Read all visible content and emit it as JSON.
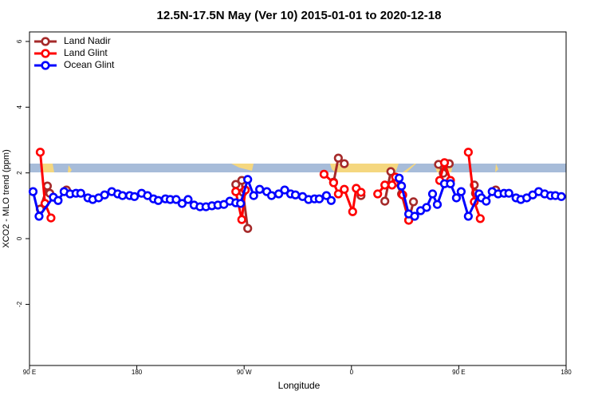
{
  "chart_data": {
    "type": "line",
    "title": "12.5N-17.5N May (Ver 10)   2015-01-01 to 2020-12-18",
    "x_label": "Longitude",
    "y_label": "XCO2 - MLO trend (ppm)",
    "xlim": [
      90,
      540
    ],
    "ylim": [
      -3.86,
      6.29
    ],
    "xticks": [
      {
        "value": 90,
        "label": "90 E"
      },
      180,
      {
        "value": 270,
        "label": "90 W"
      },
      {
        "value": 360,
        "label": "0"
      },
      {
        "value": 450,
        "label": "90 E"
      },
      {
        "value": 540,
        "label": "180"
      }
    ],
    "yticks": [
      -2,
      0,
      2,
      4,
      6
    ],
    "legend": "top-left",
    "series": [
      {
        "name": "Land Nadir",
        "color": "#a52a2a",
        "x": [
          99,
          105,
          107,
          null,
          121,
          null,
          263,
          268,
          269,
          273,
          null,
          345,
          349,
          354,
          null,
          368,
          null,
          388,
          393,
          397,
          402,
          408,
          412,
          null,
          433,
          437,
          440,
          442,
          null,
          463,
          464,
          null,
          481
        ],
        "values": [
          0.9,
          1.6,
          1.38,
          null,
          1.48,
          null,
          1.65,
          1.77,
          1.41,
          0.31,
          null,
          1.72,
          2.45,
          2.28,
          null,
          1.31,
          null,
          1.14,
          2.04,
          1.72,
          1.36,
          0.56,
          1.12,
          null,
          2.26,
          1.99,
          2.28,
          2.28,
          null,
          1.63,
          1.38,
          null,
          1.48
        ]
      },
      {
        "name": "Land Glint",
        "color": "#ff0000",
        "x": [
          99,
          103,
          108,
          null,
          263,
          268,
          271,
          null,
          337,
          345,
          349,
          354,
          361,
          364,
          368,
          null,
          382,
          388,
          394,
          397,
          403,
          408,
          null,
          434,
          438,
          443,
          null,
          458,
          463,
          468
        ],
        "values": [
          2.63,
          1.07,
          0.63,
          null,
          1.43,
          0.58,
          1.48,
          null,
          1.96,
          1.7,
          1.36,
          1.5,
          0.82,
          1.53,
          1.41,
          null,
          1.36,
          1.63,
          1.63,
          1.87,
          1.33,
          0.56,
          null,
          1.77,
          2.31,
          1.77,
          null,
          2.63,
          1.12,
          0.61
        ]
      },
      {
        "name": "Ocean Glint",
        "color": "#0000ff",
        "x": [
          93,
          98,
          110,
          114,
          119,
          124,
          129,
          133,
          139,
          143,
          148,
          153,
          159,
          164,
          168,
          174,
          178,
          184,
          189,
          194,
          198,
          204,
          208,
          213,
          218,
          223,
          228,
          233,
          238,
          243,
          248,
          253,
          258,
          263,
          267,
          273,
          278,
          283,
          289,
          293,
          299,
          304,
          309,
          313,
          319,
          324,
          329,
          333,
          339,
          343,
          null,
          400,
          402,
          408,
          413,
          418,
          423,
          428,
          432,
          438,
          443,
          448,
          452,
          458,
          467,
          469,
          473,
          478,
          483,
          488,
          492,
          498,
          502,
          507,
          512,
          517,
          522,
          527,
          531,
          536
        ],
        "values": [
          1.43,
          0.68,
          1.26,
          1.16,
          1.43,
          1.36,
          1.38,
          1.38,
          1.24,
          1.19,
          1.24,
          1.33,
          1.43,
          1.36,
          1.31,
          1.31,
          1.28,
          1.38,
          1.31,
          1.21,
          1.16,
          1.21,
          1.19,
          1.19,
          1.07,
          1.19,
          1.02,
          0.97,
          0.97,
          1.0,
          1.02,
          1.04,
          1.14,
          1.09,
          1.07,
          1.8,
          1.31,
          1.5,
          1.43,
          1.31,
          1.36,
          1.48,
          1.36,
          1.33,
          1.28,
          1.19,
          1.21,
          1.21,
          1.31,
          1.16,
          null,
          1.84,
          1.6,
          0.75,
          0.68,
          0.85,
          0.95,
          1.36,
          1.04,
          1.67,
          1.67,
          1.24,
          1.43,
          0.68,
          1.36,
          1.24,
          1.14,
          1.43,
          1.36,
          1.38,
          1.38,
          1.24,
          1.19,
          1.24,
          1.33,
          1.43,
          1.36,
          1.31,
          1.31,
          1.28
        ]
      }
    ]
  }
}
